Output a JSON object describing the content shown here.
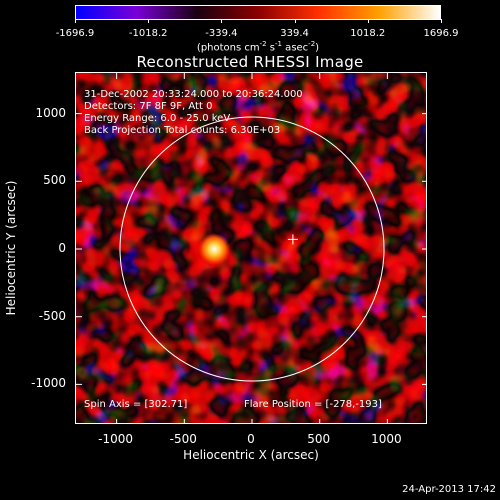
{
  "colorbar": {
    "tick_labels": [
      "-1696.9",
      "-1018.2",
      "-339.4",
      "339.4",
      "1018.2",
      "1696.9"
    ],
    "tick_values": [
      -1696.9,
      -1018.2,
      -339.4,
      339.4,
      1018.2,
      1696.9
    ],
    "range": [
      -1696.9,
      1696.9
    ],
    "unit_label_parts": [
      "(photons cm",
      "-2",
      " s",
      "-1",
      " asec",
      "-2",
      ")"
    ],
    "colors": [
      "#0000ff",
      "#7a00d6",
      "#1a0010",
      "#8a0000",
      "#ff3000",
      "#ffa000",
      "#ffffff"
    ]
  },
  "title": "Reconstructed RHESSI Image",
  "info_lines": [
    "31-Dec-2002 20:33:24.000 to 20:36:24.000",
    "Detectors: 7F 8F 9F, Att 0",
    "Energy Range: 6.0 - 25.0 keV",
    "Back Projection    Total counts: 6.30E+03"
  ],
  "spin_axis": "Spin Axis = [302.71]",
  "flare_position": "Flare Position = [-278,-193]",
  "axes": {
    "xlabel": "Heliocentric X (arcsec)",
    "ylabel": "Heliocentric Y (arcsec)",
    "xlim": [
      -1300,
      1300
    ],
    "ylim": [
      -1300,
      1300
    ],
    "xticks": [
      -1000,
      -500,
      0,
      500,
      1000
    ],
    "xtick_labels": [
      "-1000",
      "-500",
      "0",
      "500",
      "1000"
    ],
    "yticks": [
      1000,
      500,
      0,
      -500,
      -1000
    ],
    "ytick_labels": [
      "1000",
      "500",
      "0",
      "-500",
      "-1000"
    ]
  },
  "solar_disk_radius_arcsec": 975,
  "flare_source": {
    "x": -278,
    "y": -193
  },
  "spin_axis_marker": {
    "x": 302,
    "y": 71
  },
  "timestamp": "24-Apr-2013 17:42"
}
